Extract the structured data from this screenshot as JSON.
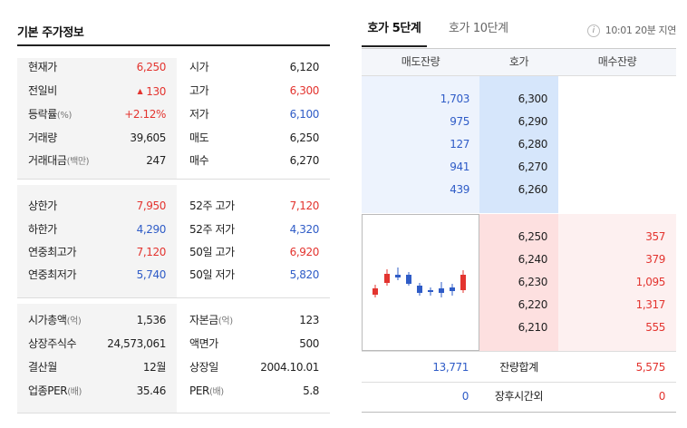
{
  "basic": {
    "title": "기본 주가정보",
    "rows": [
      {
        "l1": "현재가",
        "u1": "",
        "v1": "6,250",
        "c1": "red",
        "l2": "시가",
        "u2": "",
        "v2": "6,120",
        "c2": ""
      },
      {
        "l1": "전일비",
        "u1": "",
        "v1": "130",
        "c1": "red",
        "arrow": "▲",
        "l2": "고가",
        "u2": "",
        "v2": "6,300",
        "c2": "red"
      },
      {
        "l1": "등락률",
        "u1": "(%)",
        "v1": "+2.12%",
        "c1": "red",
        "l2": "저가",
        "u2": "",
        "v2": "6,100",
        "c2": "blue"
      },
      {
        "l1": "거래량",
        "u1": "",
        "v1": "39,605",
        "c1": "",
        "l2": "매도",
        "u2": "",
        "v2": "6,250",
        "c2": ""
      },
      {
        "l1": "거래대금",
        "u1": "(백만)",
        "v1": "247",
        "c1": "",
        "l2": "매수",
        "u2": "",
        "v2": "6,270",
        "c2": ""
      },
      {
        "l1": "상한가",
        "u1": "",
        "v1": "7,950",
        "c1": "red",
        "l2": "52주 고가",
        "u2": "",
        "v2": "7,120",
        "c2": "red"
      },
      {
        "l1": "하한가",
        "u1": "",
        "v1": "4,290",
        "c1": "blue",
        "l2": "52주 저가",
        "u2": "",
        "v2": "4,320",
        "c2": "blue"
      },
      {
        "l1": "연중최고가",
        "u1": "",
        "v1": "7,120",
        "c1": "red",
        "l2": "50일 고가",
        "u2": "",
        "v2": "6,920",
        "c2": "red"
      },
      {
        "l1": "연중최저가",
        "u1": "",
        "v1": "5,740",
        "c1": "blue",
        "l2": "50일 저가",
        "u2": "",
        "v2": "5,820",
        "c2": "blue"
      },
      {
        "l1": "시가총액",
        "u1": "(억)",
        "v1": "1,536",
        "c1": "",
        "l2": "자본금",
        "u2": "(억)",
        "v2": "123",
        "c2": ""
      },
      {
        "l1": "상장주식수",
        "u1": "",
        "v1": "24,573,061",
        "c1": "",
        "l2": "액면가",
        "u2": "",
        "v2": "500",
        "c2": ""
      },
      {
        "l1": "결산월",
        "u1": "",
        "v1": "12월",
        "c1": "",
        "l2": "상장일",
        "u2": "",
        "v2": "2004.10.01",
        "c2": ""
      },
      {
        "l1": "업종PER",
        "u1": "(배)",
        "v1": "35.46",
        "c1": "",
        "l2": "PER",
        "u2": "(배)",
        "v2": "5.8",
        "c2": ""
      }
    ]
  },
  "orderbook": {
    "tabs": [
      "호가 5단계",
      "호가 10단계"
    ],
    "time_info": "10:01 20분 지연",
    "info_icon": "info-icon",
    "headers": [
      "매도잔량",
      "호가",
      "매수잔량"
    ],
    "asks": [
      {
        "qty": "1,703",
        "price": "6,300"
      },
      {
        "qty": "975",
        "price": "6,290"
      },
      {
        "qty": "127",
        "price": "6,280"
      },
      {
        "qty": "941",
        "price": "6,270"
      },
      {
        "qty": "439",
        "price": "6,260"
      }
    ],
    "bids": [
      {
        "price": "6,250",
        "qty": "357"
      },
      {
        "price": "6,240",
        "qty": "379"
      },
      {
        "price": "6,230",
        "qty": "1,095"
      },
      {
        "price": "6,220",
        "qty": "1,317"
      },
      {
        "price": "6,210",
        "qty": "555"
      }
    ],
    "total": {
      "ask": "13,771",
      "label": "잔량합계",
      "bid": "5,575"
    },
    "after_hours": {
      "ask": "0",
      "label": "장후시간외",
      "bid": "0"
    }
  },
  "colors": {
    "up": "#e3342f",
    "down": "#2f5cc7"
  }
}
